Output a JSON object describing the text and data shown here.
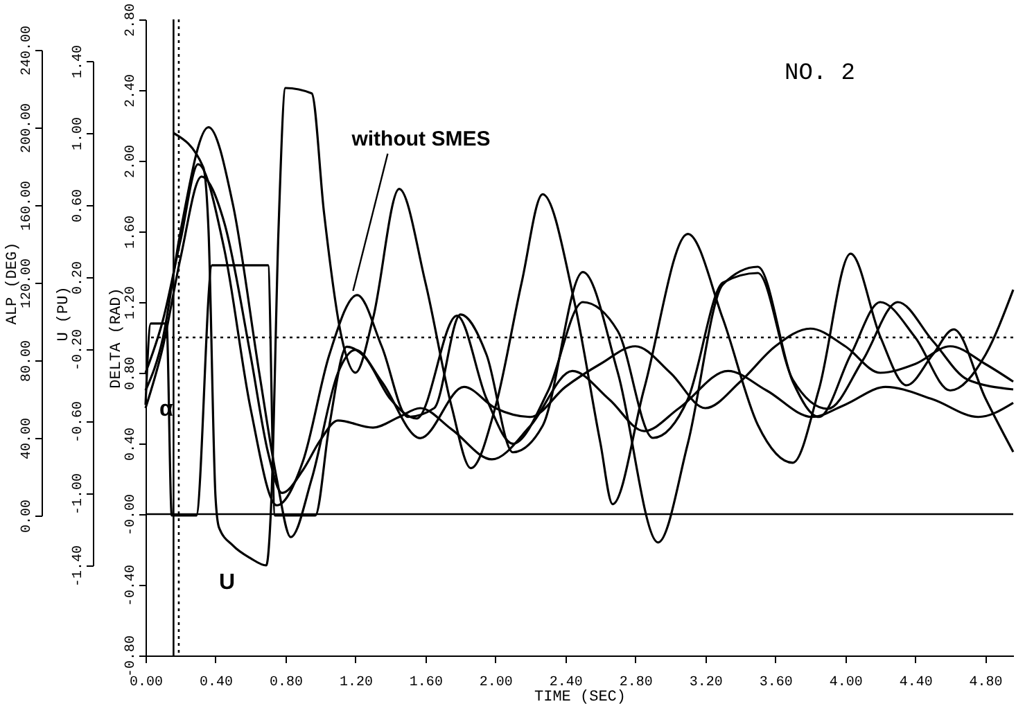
{
  "chart_data": {
    "type": "line",
    "xlabel": "TIME (SEC)",
    "ylabel": "DELTA (RAD)",
    "y2label": "U (PU)",
    "y3label": "ALP (DEG)",
    "annotations": [
      "NO. 2",
      "α",
      "U",
      {
        "text": "without SMES",
        "x": 1.21,
        "y": 1.24
      }
    ],
    "xlim": [
      0,
      4.96
    ],
    "xticks": [
      {
        "value": 0,
        "label": "0.00"
      },
      {
        "value": 0.4,
        "label": "0.40"
      },
      {
        "value": 0.8,
        "label": "0.80"
      },
      {
        "value": 1.2,
        "label": "1.20"
      },
      {
        "value": 1.6,
        "label": "1.60"
      },
      {
        "value": 2.0,
        "label": "2.00"
      },
      {
        "value": 2.4,
        "label": "2.40"
      },
      {
        "value": 2.8,
        "label": "2.80"
      },
      {
        "value": 3.2,
        "label": "3.20"
      },
      {
        "value": 3.6,
        "label": "3.60"
      },
      {
        "value": 4.0,
        "label": "4.00"
      },
      {
        "value": 4.4,
        "label": "4.40"
      },
      {
        "value": 4.8,
        "label": "4.80"
      }
    ],
    "ylim": [
      -0.8,
      2.8
    ],
    "yticks": [
      {
        "value": -0.8,
        "label": "-0.80"
      },
      {
        "value": -0.4,
        "label": "-0.40"
      },
      {
        "value": 0,
        "label": "-0.00"
      },
      {
        "value": 0.4,
        "label": "0.40"
      },
      {
        "value": 0.8,
        "label": "0.80"
      },
      {
        "value": 1.2,
        "label": "1.20"
      },
      {
        "value": 1.6,
        "label": "1.60"
      },
      {
        "value": 2.0,
        "label": "2.00"
      },
      {
        "value": 2.4,
        "label": "2.40"
      },
      {
        "value": 2.8,
        "label": "2.80"
      }
    ],
    "y2lim": [
      -1.4,
      1.4
    ],
    "y2ticks": [
      {
        "value": -1.4,
        "label": "-1.40"
      },
      {
        "value": -1.0,
        "label": "-1.00"
      },
      {
        "value": -0.6,
        "label": "-0.60"
      },
      {
        "value": -0.2,
        "label": "-0.20"
      },
      {
        "value": 0.2,
        "label": "0.20"
      },
      {
        "value": 0.6,
        "label": "0.60"
      },
      {
        "value": 1.0,
        "label": "1.00"
      },
      {
        "value": 1.4,
        "label": "1.40"
      }
    ],
    "y3lim": [
      0,
      240
    ],
    "y3ticks": [
      {
        "value": 0,
        "label": "0.00"
      },
      {
        "value": 40,
        "label": "40.00"
      },
      {
        "value": 80,
        "label": "80.00"
      },
      {
        "value": 120,
        "label": "120.00"
      },
      {
        "value": 160,
        "label": "160.00"
      },
      {
        "value": 200,
        "label": "200.00"
      },
      {
        "value": 240,
        "label": "240.00"
      }
    ],
    "grid": false,
    "marker": "none",
    "line_style": "solid",
    "ref_lines": [
      {
        "axis": "y",
        "value": 0,
        "line_style": "solid",
        "color": "#000000"
      },
      {
        "axis": "y",
        "value": 1.0,
        "line_style": "dotted",
        "color": "#000000"
      },
      {
        "axis": "x",
        "value": 0.16,
        "line_style": "solid",
        "color": "#000000"
      },
      {
        "axis": "x",
        "value": 0.19,
        "line_style": "dotted",
        "color": "#000000"
      }
    ],
    "series": [
      {
        "color": "#000000",
        "x": [
          0,
          0.1,
          0.2,
          0.32,
          0.45,
          0.6,
          0.7,
          0.78,
          0.9,
          1.0,
          1.1,
          1.3,
          1.45,
          1.57,
          1.75,
          1.98,
          2.2,
          2.44,
          2.65,
          2.85,
          3.05,
          3.33,
          3.55,
          3.81,
          4.0,
          4.23,
          4.5,
          4.76,
          4.96
        ],
        "values": [
          0.6,
          0.95,
          1.45,
          1.91,
          1.65,
          0.9,
          0.35,
          0.12,
          0.25,
          0.42,
          0.53,
          0.49,
          0.55,
          0.6,
          0.48,
          0.31,
          0.5,
          0.81,
          0.65,
          0.47,
          0.6,
          0.81,
          0.7,
          0.55,
          0.62,
          0.72,
          0.65,
          0.55,
          0.63
        ]
      },
      {
        "color": "#000000",
        "x": [
          0,
          0.1,
          0.2,
          0.36,
          0.5,
          0.65,
          0.75,
          0.83,
          0.95,
          1.1,
          1.2,
          1.35,
          1.57,
          1.82,
          2.0,
          2.2,
          2.4,
          2.6,
          2.8,
          3.0,
          3.2,
          3.4,
          3.6,
          3.8,
          4.0,
          4.2,
          4.4,
          4.6,
          4.8,
          4.96
        ],
        "values": [
          0.7,
          1.0,
          1.6,
          2.19,
          1.75,
          0.8,
          0.2,
          -0.13,
          0.2,
          0.8,
          0.93,
          0.75,
          0.43,
          0.72,
          0.6,
          0.55,
          0.72,
          0.85,
          0.95,
          0.8,
          0.6,
          0.75,
          0.95,
          1.05,
          0.95,
          0.8,
          0.85,
          0.95,
          0.85,
          0.75
        ]
      },
      {
        "color": "#000000",
        "x": [
          0,
          0.1,
          0.2,
          0.3,
          0.45,
          0.6,
          0.75,
          0.9,
          1.05,
          1.21,
          1.35,
          1.5,
          1.65,
          1.8,
          1.95,
          2.1,
          2.27,
          2.5,
          2.7,
          2.93,
          3.1,
          3.3,
          3.5,
          3.7,
          3.85,
          4.03,
          4.2,
          4.4,
          4.6,
          4.8,
          4.96
        ],
        "values": [
          0.8,
          1.1,
          1.55,
          1.98,
          1.5,
          0.6,
          0.05,
          0.3,
          0.9,
          1.24,
          0.95,
          0.55,
          0.6,
          1.13,
          0.9,
          0.35,
          0.5,
          1.37,
          0.8,
          -0.16,
          0.4,
          1.3,
          1.4,
          0.75,
          0.55,
          0.9,
          1.2,
          1.0,
          0.7,
          0.9,
          1.27
        ]
      },
      {
        "color": "#000000",
        "axis": "y2",
        "x": [
          0.16,
          0.33,
          0.36,
          0.4,
          0.42,
          0.5,
          0.6,
          0.69,
          0.72,
          0.76,
          0.8,
          0.95,
          1.02,
          1.12,
          1.2,
          1.3,
          1.45,
          1.6,
          1.75,
          1.86,
          2.0,
          2.15,
          2.27,
          2.45,
          2.6,
          2.67,
          2.85,
          3.1,
          3.3,
          3.5,
          3.7,
          3.85,
          4.03,
          4.2,
          4.35,
          4.5,
          4.62,
          4.8,
          4.96
        ],
        "values": [
          1.0,
          0.81,
          0.46,
          -1.02,
          -1.19,
          -1.29,
          -1.36,
          -1.4,
          -1.02,
          0.46,
          1.25,
          1.22,
          0.56,
          -0.13,
          -0.33,
          -0.03,
          0.69,
          0.17,
          -0.52,
          -0.86,
          -0.52,
          0.17,
          0.66,
          0.07,
          -0.72,
          -1.06,
          -0.42,
          0.44,
          -0.03,
          -0.62,
          -0.83,
          -0.42,
          0.33,
          -0.13,
          -0.4,
          -0.23,
          -0.09,
          -0.47,
          -0.77
        ]
      },
      {
        "color": "#000000",
        "axis": "y3",
        "x": [
          0,
          0.03,
          0.12,
          0.15,
          0.29,
          0.38,
          0.7,
          0.74,
          0.97,
          1.05,
          1.15,
          1.25,
          1.4,
          1.55,
          1.78,
          1.95,
          2.1,
          2.3,
          2.5,
          2.7,
          2.9,
          3.1,
          3.3,
          3.5,
          3.7,
          3.9,
          4.1,
          4.3,
          4.5,
          4.7,
          4.96
        ],
        "values": [
          57,
          99,
          99,
          0,
          0,
          129,
          129,
          0,
          0,
          46,
          87,
          82,
          60,
          50,
          103,
          60,
          37,
          64,
          110,
          95,
          40,
          60,
          120,
          125,
          70,
          55,
          80,
          110,
          90,
          70,
          65
        ]
      }
    ]
  }
}
